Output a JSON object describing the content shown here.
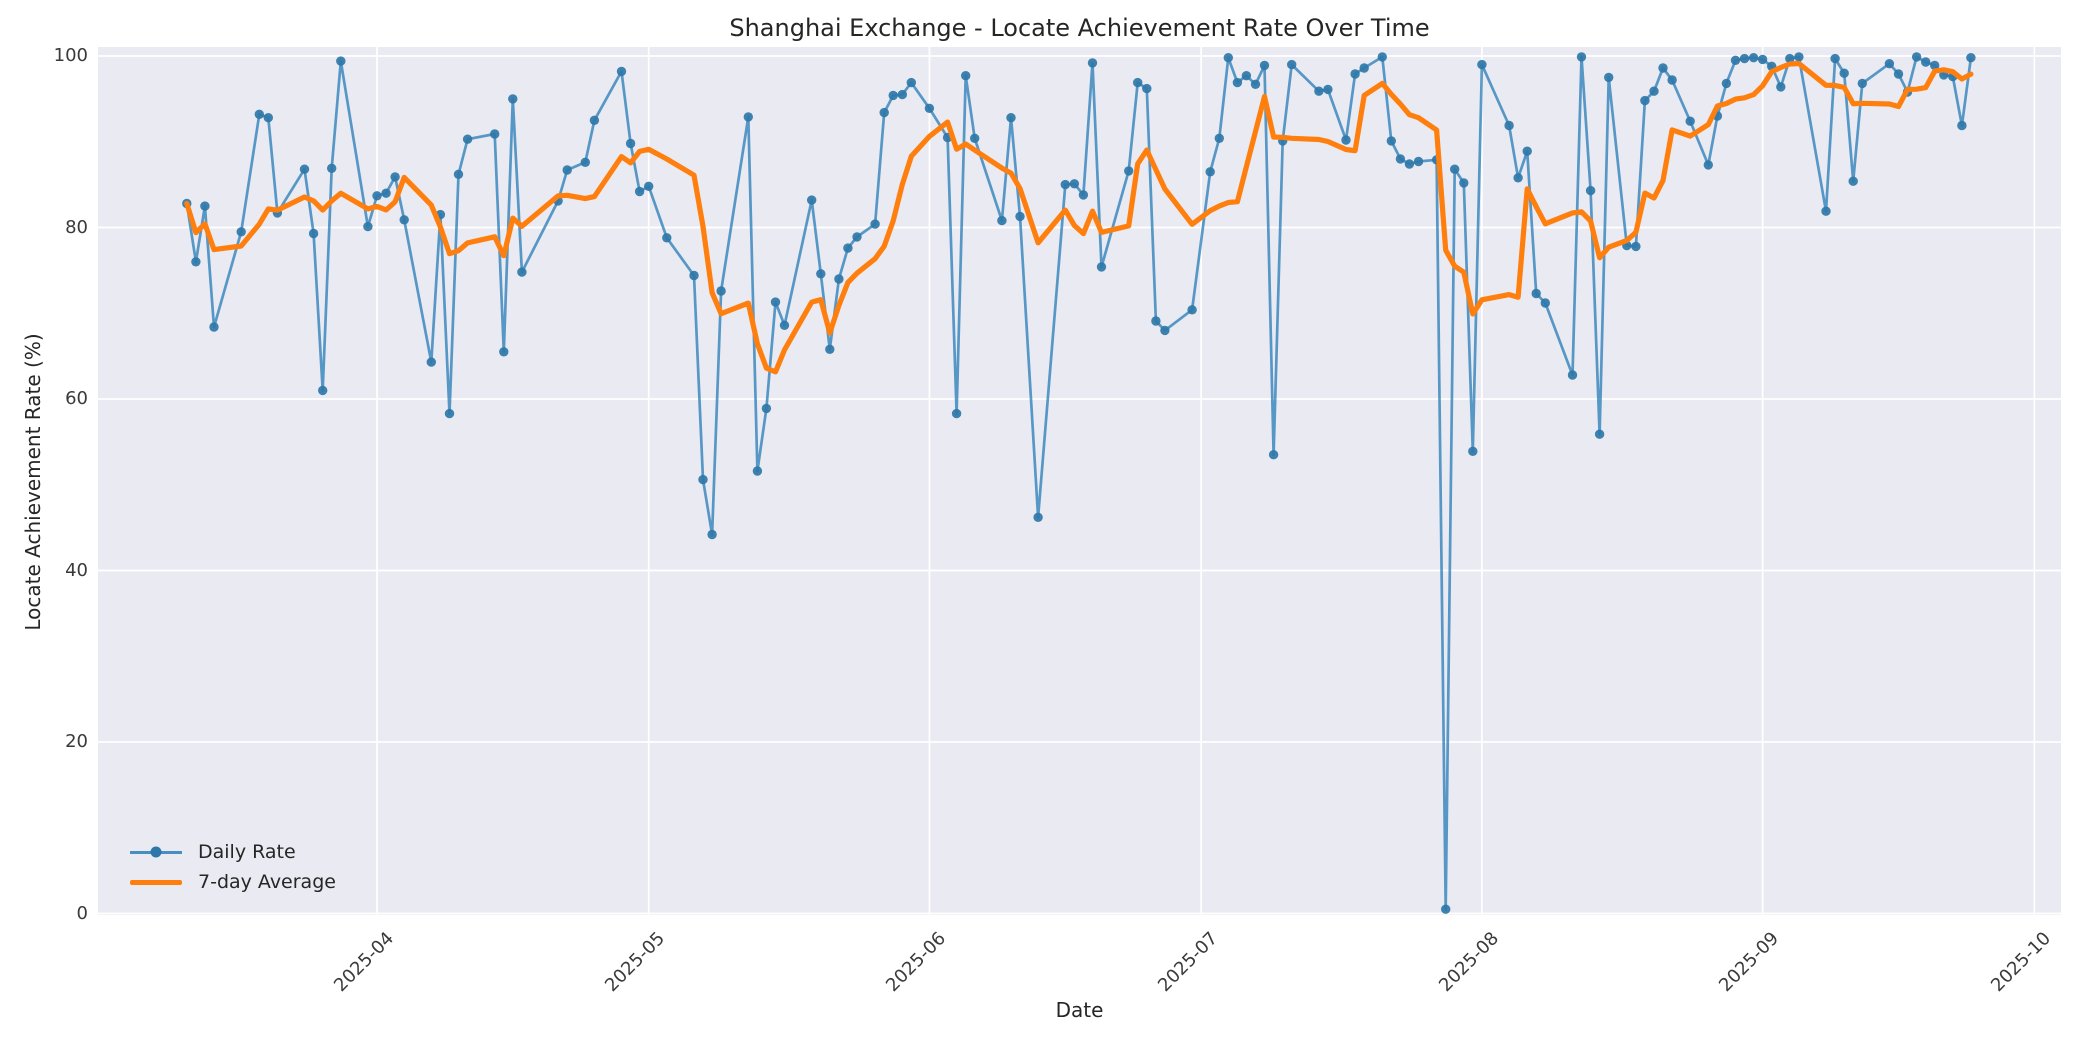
{
  "chart_data": {
    "type": "line",
    "title": "Shanghai Exchange - Locate Achievement Rate Over Time",
    "xlabel": "Date",
    "ylabel": "Locate Achievement Rate (%)",
    "ylim": [
      0,
      100
    ],
    "y_ticks": [
      0,
      20,
      40,
      60,
      80,
      100
    ],
    "x_tick_labels": [
      "2025-04",
      "2025-05",
      "2025-06",
      "2025-07",
      "2025-08",
      "2025-09",
      "2025-10"
    ],
    "grid": "on",
    "legend_position": "lower-left",
    "colors": {
      "plot_background": "#eaeaf2",
      "figure_background": "#ffffff",
      "gridline": "#ffffff",
      "daily_line": "#1f77b4",
      "daily_line_alpha": 0.72,
      "daily_marker": "#2e77a8",
      "average_line": "#ff7f0e",
      "text": "#262626"
    },
    "series": [
      {
        "name": "Daily Rate",
        "style": "line-with-markers",
        "points": [
          [
            "2025-03-11",
            82.8
          ],
          [
            "2025-03-12",
            76.0
          ],
          [
            "2025-03-13",
            82.5
          ],
          [
            "2025-03-14",
            68.4
          ],
          [
            "2025-03-17",
            79.5
          ],
          [
            "2025-03-19",
            93.2
          ],
          [
            "2025-03-20",
            92.8
          ],
          [
            "2025-03-21",
            81.7
          ],
          [
            "2025-03-24",
            86.8
          ],
          [
            "2025-03-25",
            79.3
          ],
          [
            "2025-03-26",
            61.0
          ],
          [
            "2025-03-27",
            86.9
          ],
          [
            "2025-03-28",
            99.4
          ],
          [
            "2025-03-31",
            80.1
          ],
          [
            "2025-04-01",
            83.7
          ],
          [
            "2025-04-02",
            84.0
          ],
          [
            "2025-04-03",
            85.9
          ],
          [
            "2025-04-04",
            80.9
          ],
          [
            "2025-04-07",
            64.3
          ],
          [
            "2025-04-08",
            81.5
          ],
          [
            "2025-04-09",
            58.3
          ],
          [
            "2025-04-10",
            86.2
          ],
          [
            "2025-04-11",
            90.3
          ],
          [
            "2025-04-14",
            90.9
          ],
          [
            "2025-04-15",
            65.5
          ],
          [
            "2025-04-16",
            95.0
          ],
          [
            "2025-04-17",
            74.8
          ],
          [
            "2025-04-21",
            83.1
          ],
          [
            "2025-04-22",
            86.7
          ],
          [
            "2025-04-24",
            87.6
          ],
          [
            "2025-04-25",
            92.5
          ],
          [
            "2025-04-28",
            98.2
          ],
          [
            "2025-04-29",
            89.8
          ],
          [
            "2025-04-30",
            84.2
          ],
          [
            "2025-05-01",
            84.8
          ],
          [
            "2025-05-03",
            78.8
          ],
          [
            "2025-05-06",
            74.4
          ],
          [
            "2025-05-07",
            50.6
          ],
          [
            "2025-05-08",
            44.2
          ],
          [
            "2025-05-09",
            72.6
          ],
          [
            "2025-05-12",
            92.9
          ],
          [
            "2025-05-13",
            51.6
          ],
          [
            "2025-05-14",
            58.9
          ],
          [
            "2025-05-15",
            71.3
          ],
          [
            "2025-05-16",
            68.6
          ],
          [
            "2025-05-19",
            83.2
          ],
          [
            "2025-05-20",
            74.6
          ],
          [
            "2025-05-21",
            65.8
          ],
          [
            "2025-05-22",
            74.0
          ],
          [
            "2025-05-23",
            77.6
          ],
          [
            "2025-05-24",
            78.9
          ],
          [
            "2025-05-26",
            80.4
          ],
          [
            "2025-05-27",
            93.4
          ],
          [
            "2025-05-28",
            95.4
          ],
          [
            "2025-05-29",
            95.5
          ],
          [
            "2025-05-30",
            96.9
          ],
          [
            "2025-06-01",
            93.9
          ],
          [
            "2025-06-03",
            90.5
          ],
          [
            "2025-06-04",
            58.3
          ],
          [
            "2025-06-05",
            97.7
          ],
          [
            "2025-06-06",
            90.4
          ],
          [
            "2025-06-09",
            80.8
          ],
          [
            "2025-06-10",
            92.8
          ],
          [
            "2025-06-11",
            81.3
          ],
          [
            "2025-06-13",
            46.2
          ],
          [
            "2025-06-16",
            85.0
          ],
          [
            "2025-06-17",
            85.1
          ],
          [
            "2025-06-18",
            83.8
          ],
          [
            "2025-06-19",
            99.2
          ],
          [
            "2025-06-20",
            75.4
          ],
          [
            "2025-06-23",
            86.6
          ],
          [
            "2025-06-24",
            96.9
          ],
          [
            "2025-06-25",
            96.2
          ],
          [
            "2025-06-26",
            69.1
          ],
          [
            "2025-06-27",
            68.0
          ],
          [
            "2025-06-30",
            70.4
          ],
          [
            "2025-07-02",
            86.5
          ],
          [
            "2025-07-03",
            90.4
          ],
          [
            "2025-07-04",
            99.8
          ],
          [
            "2025-07-05",
            96.9
          ],
          [
            "2025-07-06",
            97.7
          ],
          [
            "2025-07-07",
            96.7
          ],
          [
            "2025-07-08",
            98.9
          ],
          [
            "2025-07-09",
            53.5
          ],
          [
            "2025-07-10",
            90.1
          ],
          [
            "2025-07-11",
            99.0
          ],
          [
            "2025-07-14",
            95.9
          ],
          [
            "2025-07-15",
            96.1
          ],
          [
            "2025-07-17",
            90.2
          ],
          [
            "2025-07-18",
            97.9
          ],
          [
            "2025-07-19",
            98.6
          ],
          [
            "2025-07-21",
            99.9
          ],
          [
            "2025-07-22",
            90.1
          ],
          [
            "2025-07-23",
            88.0
          ],
          [
            "2025-07-24",
            87.4
          ],
          [
            "2025-07-25",
            87.7
          ],
          [
            "2025-07-27",
            87.9
          ],
          [
            "2025-07-28",
            0.5
          ],
          [
            "2025-07-29",
            86.8
          ],
          [
            "2025-07-30",
            85.2
          ],
          [
            "2025-07-31",
            53.9
          ],
          [
            "2025-08-01",
            99.0
          ],
          [
            "2025-08-04",
            91.9
          ],
          [
            "2025-08-05",
            85.8
          ],
          [
            "2025-08-06",
            88.9
          ],
          [
            "2025-08-07",
            72.3
          ],
          [
            "2025-08-08",
            71.2
          ],
          [
            "2025-08-11",
            62.8
          ],
          [
            "2025-08-12",
            99.9
          ],
          [
            "2025-08-13",
            84.3
          ],
          [
            "2025-08-14",
            55.9
          ],
          [
            "2025-08-15",
            97.5
          ],
          [
            "2025-08-17",
            77.9
          ],
          [
            "2025-08-18",
            77.8
          ],
          [
            "2025-08-19",
            94.8
          ],
          [
            "2025-08-20",
            95.9
          ],
          [
            "2025-08-21",
            98.6
          ],
          [
            "2025-08-22",
            97.2
          ],
          [
            "2025-08-24",
            92.4
          ],
          [
            "2025-08-26",
            87.3
          ],
          [
            "2025-08-27",
            93.0
          ],
          [
            "2025-08-28",
            96.8
          ],
          [
            "2025-08-29",
            99.5
          ],
          [
            "2025-08-30",
            99.7
          ],
          [
            "2025-08-31",
            99.8
          ],
          [
            "2025-09-01",
            99.6
          ],
          [
            "2025-09-02",
            98.8
          ],
          [
            "2025-09-03",
            96.4
          ],
          [
            "2025-09-04",
            99.7
          ],
          [
            "2025-09-05",
            99.9
          ],
          [
            "2025-09-08",
            81.9
          ],
          [
            "2025-09-09",
            99.7
          ],
          [
            "2025-09-10",
            98.0
          ],
          [
            "2025-09-11",
            85.4
          ],
          [
            "2025-09-12",
            96.8
          ],
          [
            "2025-09-15",
            99.1
          ],
          [
            "2025-09-16",
            97.9
          ],
          [
            "2025-09-17",
            95.8
          ],
          [
            "2025-09-18",
            99.9
          ],
          [
            "2025-09-19",
            99.3
          ],
          [
            "2025-09-20",
            98.9
          ],
          [
            "2025-09-21",
            97.8
          ],
          [
            "2025-09-22",
            97.6
          ],
          [
            "2025-09-23",
            91.9
          ],
          [
            "2025-09-24",
            99.8
          ]
        ]
      },
      {
        "name": "7-day Average",
        "style": "thick-line",
        "derived_from": "Daily Rate",
        "derivation": "rolling mean, window 7, min_periods 1"
      }
    ]
  },
  "legend": {
    "daily_label": "Daily Rate",
    "average_label": "7-day Average"
  }
}
